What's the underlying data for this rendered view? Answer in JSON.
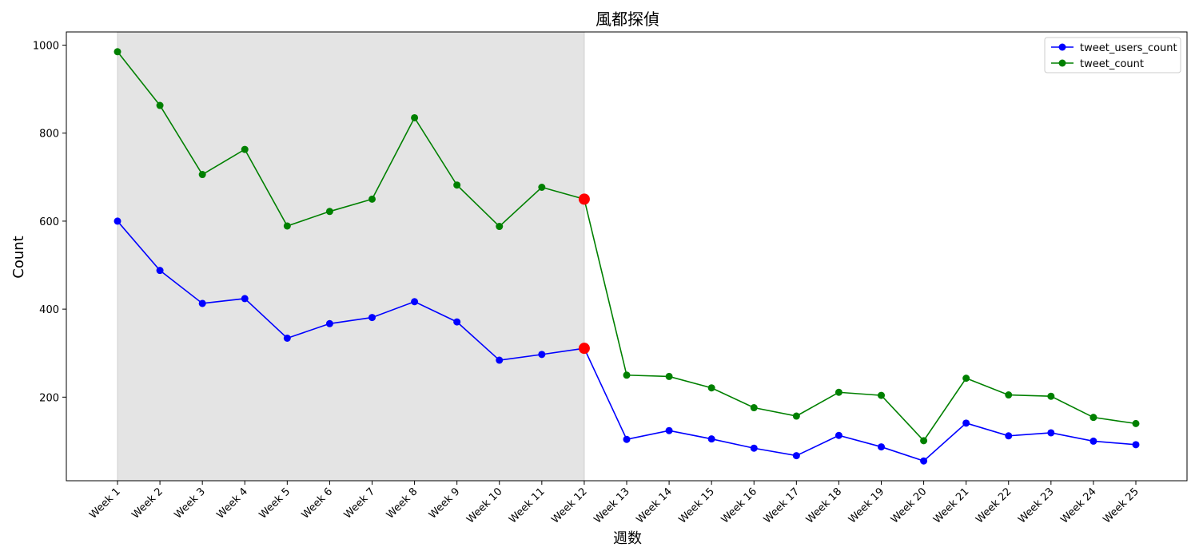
{
  "chart_data": {
    "type": "line",
    "title": "風都探偵",
    "xlabel": "週数",
    "ylabel": "Count",
    "categories": [
      "Week 1",
      "Week 2",
      "Week 3",
      "Week 4",
      "Week 5",
      "Week 6",
      "Week 7",
      "Week 8",
      "Week 9",
      "Week 10",
      "Week 11",
      "Week 12",
      "Week 13",
      "Week 14",
      "Week 15",
      "Week 16",
      "Week 17",
      "Week 18",
      "Week 19",
      "Week 20",
      "Week 21",
      "Week 22",
      "Week 23",
      "Week 24",
      "Week 25"
    ],
    "ylim": [
      10,
      1030
    ],
    "yticks": [
      200,
      400,
      600,
      800,
      1000
    ],
    "grid": false,
    "legend_position": "top-right",
    "shaded_region": {
      "from": "Week 1",
      "to": "Week 12",
      "color": "#e4e4e4"
    },
    "highlight_category": "Week 12",
    "highlight_color": "#ff0000",
    "series": [
      {
        "name": "tweet_users_count",
        "color": "#0000ff",
        "values": [
          600,
          488,
          413,
          424,
          334,
          367,
          381,
          417,
          371,
          284,
          297,
          311,
          104,
          124,
          105,
          84,
          67,
          113,
          87,
          55,
          141,
          112,
          119,
          100,
          92
        ]
      },
      {
        "name": "tweet_count",
        "color": "#008000",
        "values": [
          985,
          863,
          706,
          763,
          589,
          622,
          650,
          835,
          682,
          588,
          677,
          650,
          250,
          247,
          221,
          176,
          157,
          211,
          204,
          101,
          243,
          205,
          202,
          154,
          140
        ]
      }
    ]
  }
}
